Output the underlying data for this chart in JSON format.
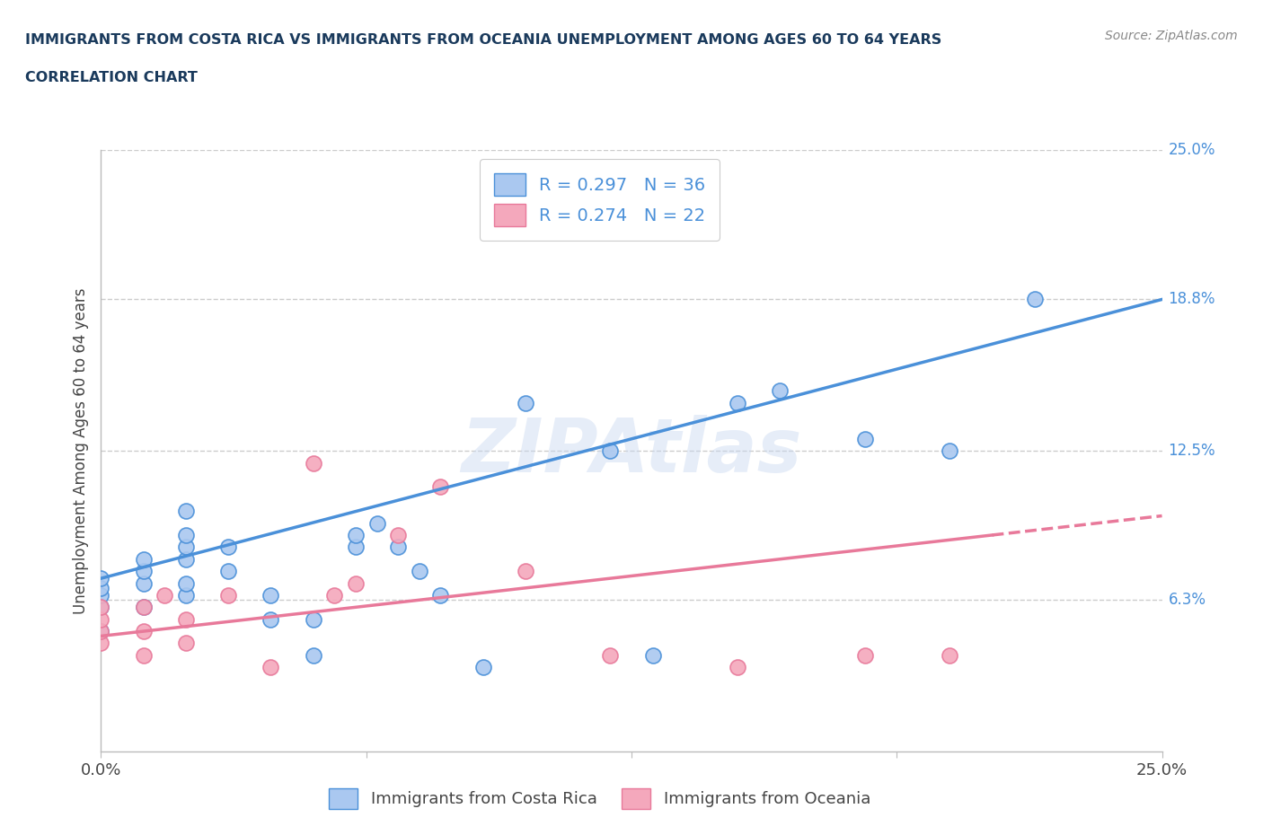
{
  "title_line1": "IMMIGRANTS FROM COSTA RICA VS IMMIGRANTS FROM OCEANIA UNEMPLOYMENT AMONG AGES 60 TO 64 YEARS",
  "title_line2": "CORRELATION CHART",
  "source": "Source: ZipAtlas.com",
  "ylabel": "Unemployment Among Ages 60 to 64 years",
  "xlim": [
    0.0,
    0.25
  ],
  "ylim": [
    0.0,
    0.25
  ],
  "xticklabels": [
    "0.0%",
    "25.0%"
  ],
  "ytick_labels_right": [
    "25.0%",
    "18.8%",
    "12.5%",
    "6.3%"
  ],
  "ytick_positions_right": [
    0.25,
    0.188,
    0.125,
    0.063
  ],
  "watermark": "ZIPAtlas",
  "costa_rica_R": 0.297,
  "costa_rica_N": 36,
  "oceania_R": 0.274,
  "oceania_N": 22,
  "costa_rica_color": "#aac8f0",
  "oceania_color": "#f4a8bc",
  "costa_rica_line_color": "#4a90d9",
  "oceania_line_color": "#e8799a",
  "costa_rica_scatter_x": [
    0.0,
    0.0,
    0.0,
    0.0,
    0.0,
    0.01,
    0.01,
    0.01,
    0.01,
    0.02,
    0.02,
    0.02,
    0.02,
    0.02,
    0.02,
    0.03,
    0.03,
    0.04,
    0.04,
    0.05,
    0.05,
    0.06,
    0.06,
    0.065,
    0.07,
    0.075,
    0.08,
    0.09,
    0.1,
    0.12,
    0.13,
    0.15,
    0.16,
    0.18,
    0.2,
    0.22
  ],
  "costa_rica_scatter_y": [
    0.06,
    0.065,
    0.068,
    0.072,
    0.05,
    0.06,
    0.07,
    0.075,
    0.08,
    0.065,
    0.07,
    0.08,
    0.085,
    0.09,
    0.1,
    0.075,
    0.085,
    0.055,
    0.065,
    0.04,
    0.055,
    0.085,
    0.09,
    0.095,
    0.085,
    0.075,
    0.065,
    0.035,
    0.145,
    0.125,
    0.04,
    0.145,
    0.15,
    0.13,
    0.125,
    0.188
  ],
  "oceania_scatter_x": [
    0.0,
    0.0,
    0.0,
    0.0,
    0.01,
    0.01,
    0.01,
    0.015,
    0.02,
    0.02,
    0.03,
    0.04,
    0.05,
    0.055,
    0.06,
    0.07,
    0.08,
    0.1,
    0.12,
    0.15,
    0.18,
    0.2
  ],
  "oceania_scatter_y": [
    0.045,
    0.05,
    0.055,
    0.06,
    0.04,
    0.05,
    0.06,
    0.065,
    0.045,
    0.055,
    0.065,
    0.035,
    0.12,
    0.065,
    0.07,
    0.09,
    0.11,
    0.075,
    0.04,
    0.035,
    0.04,
    0.04
  ],
  "cr_line_x": [
    0.0,
    0.25
  ],
  "cr_line_y": [
    0.072,
    0.188
  ],
  "oc_line_x": [
    0.0,
    0.25
  ],
  "oc_line_y": [
    0.048,
    0.098
  ],
  "grid_color": "#cccccc",
  "background_color": "#ffffff",
  "title_color": "#1a3a5c",
  "source_color": "#888888",
  "label_color": "#444444",
  "right_tick_color": "#4a90d9"
}
